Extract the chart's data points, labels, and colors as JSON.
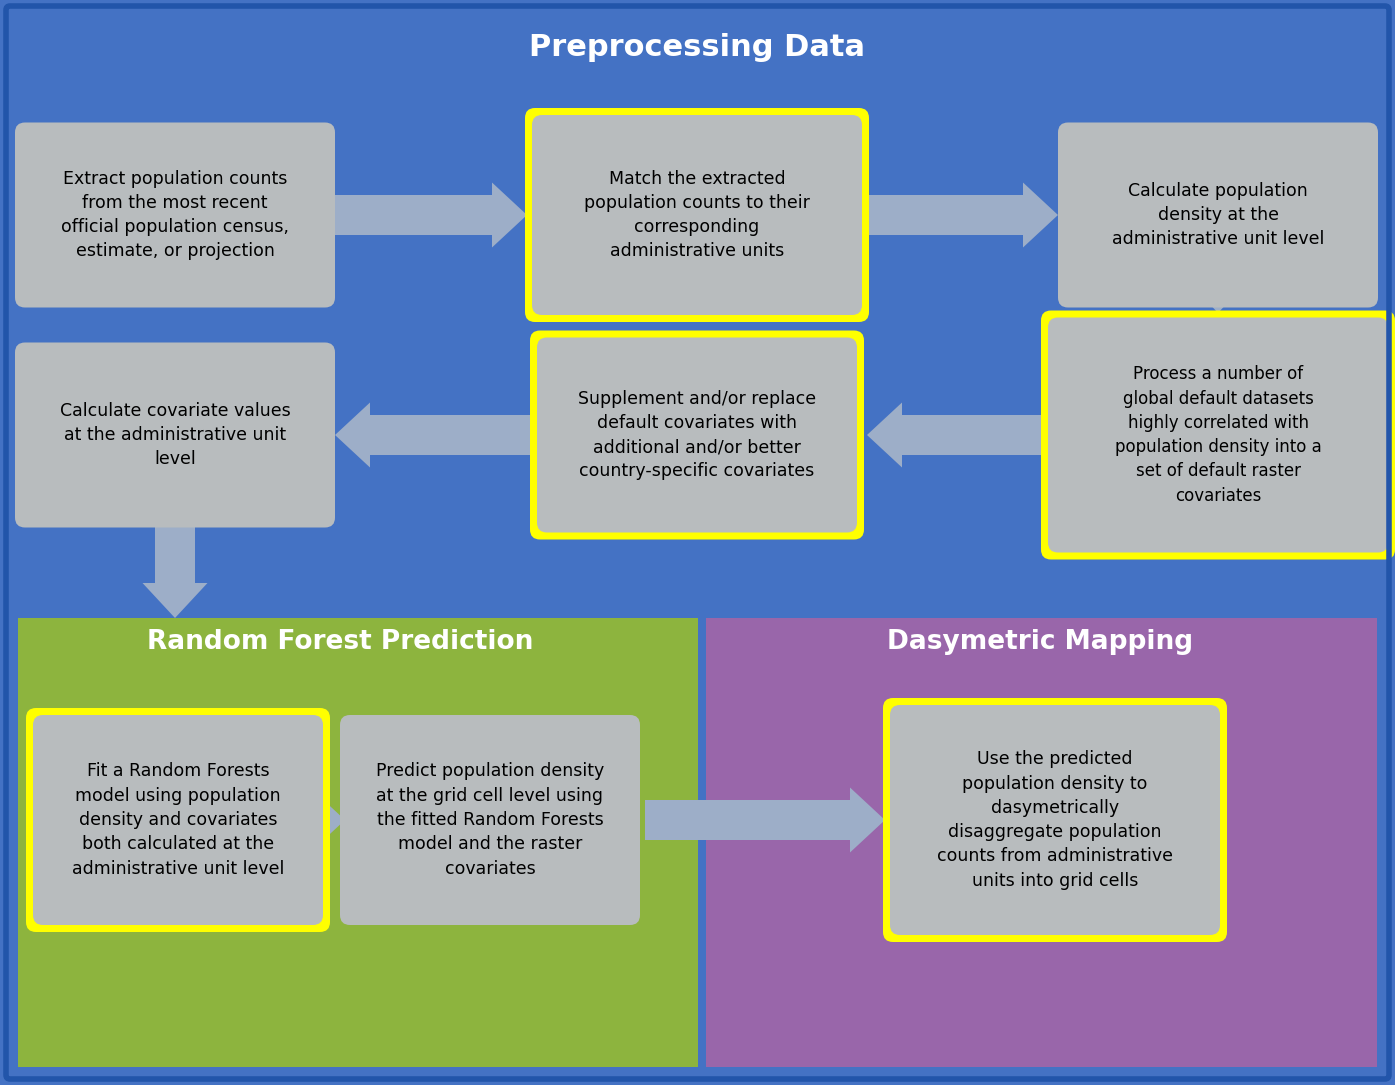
{
  "fig_w": 13.95,
  "fig_h": 10.85,
  "dpi": 100,
  "bg_color": "#4472C4",
  "green_color": "#8DB43E",
  "purple_color": "#9966AA",
  "box_fill": "#B8BCBE",
  "yellow": "#FFFF00",
  "arrow_fill": "#9DAEC8",
  "white": "#FFFFFF",
  "black": "#000000",
  "title_pre": "Preprocessing Data",
  "title_rf": "Random Forest Prediction",
  "title_dasy": "Dasymetric Mapping",
  "box1_text": "Extract population counts\nfrom the most recent\nofficial population census,\nestimate, or projection",
  "box2_text": "Match the extracted\npopulation counts to their\ncorresponding\nadministrative units",
  "box3_text": "Calculate population\ndensity at the\nadministrative unit level",
  "box4_text": "Process a number of\nglobal default datasets\nhighly correlated with\npopulation density into a\nset of default raster\ncovariates",
  "box5_text": "Supplement and/or replace\ndefault covariates with\nadditional and/or better\ncountry-specific covariates",
  "box6_text": "Calculate covariate values\nat the administrative unit\nlevel",
  "box7_text": "Fit a Random Forests\nmodel using population\ndensity and covariates\nboth calculated at the\nadministrative unit level",
  "box8_text": "Predict population density\nat the grid cell level using\nthe fitted Random Forests\nmodel and the raster\ncovariates",
  "box9_text": "Use the predicted\npopulation density to\ndasymetrically\ndisaggregate population\ncounts from administrative\nunits into grid cells"
}
